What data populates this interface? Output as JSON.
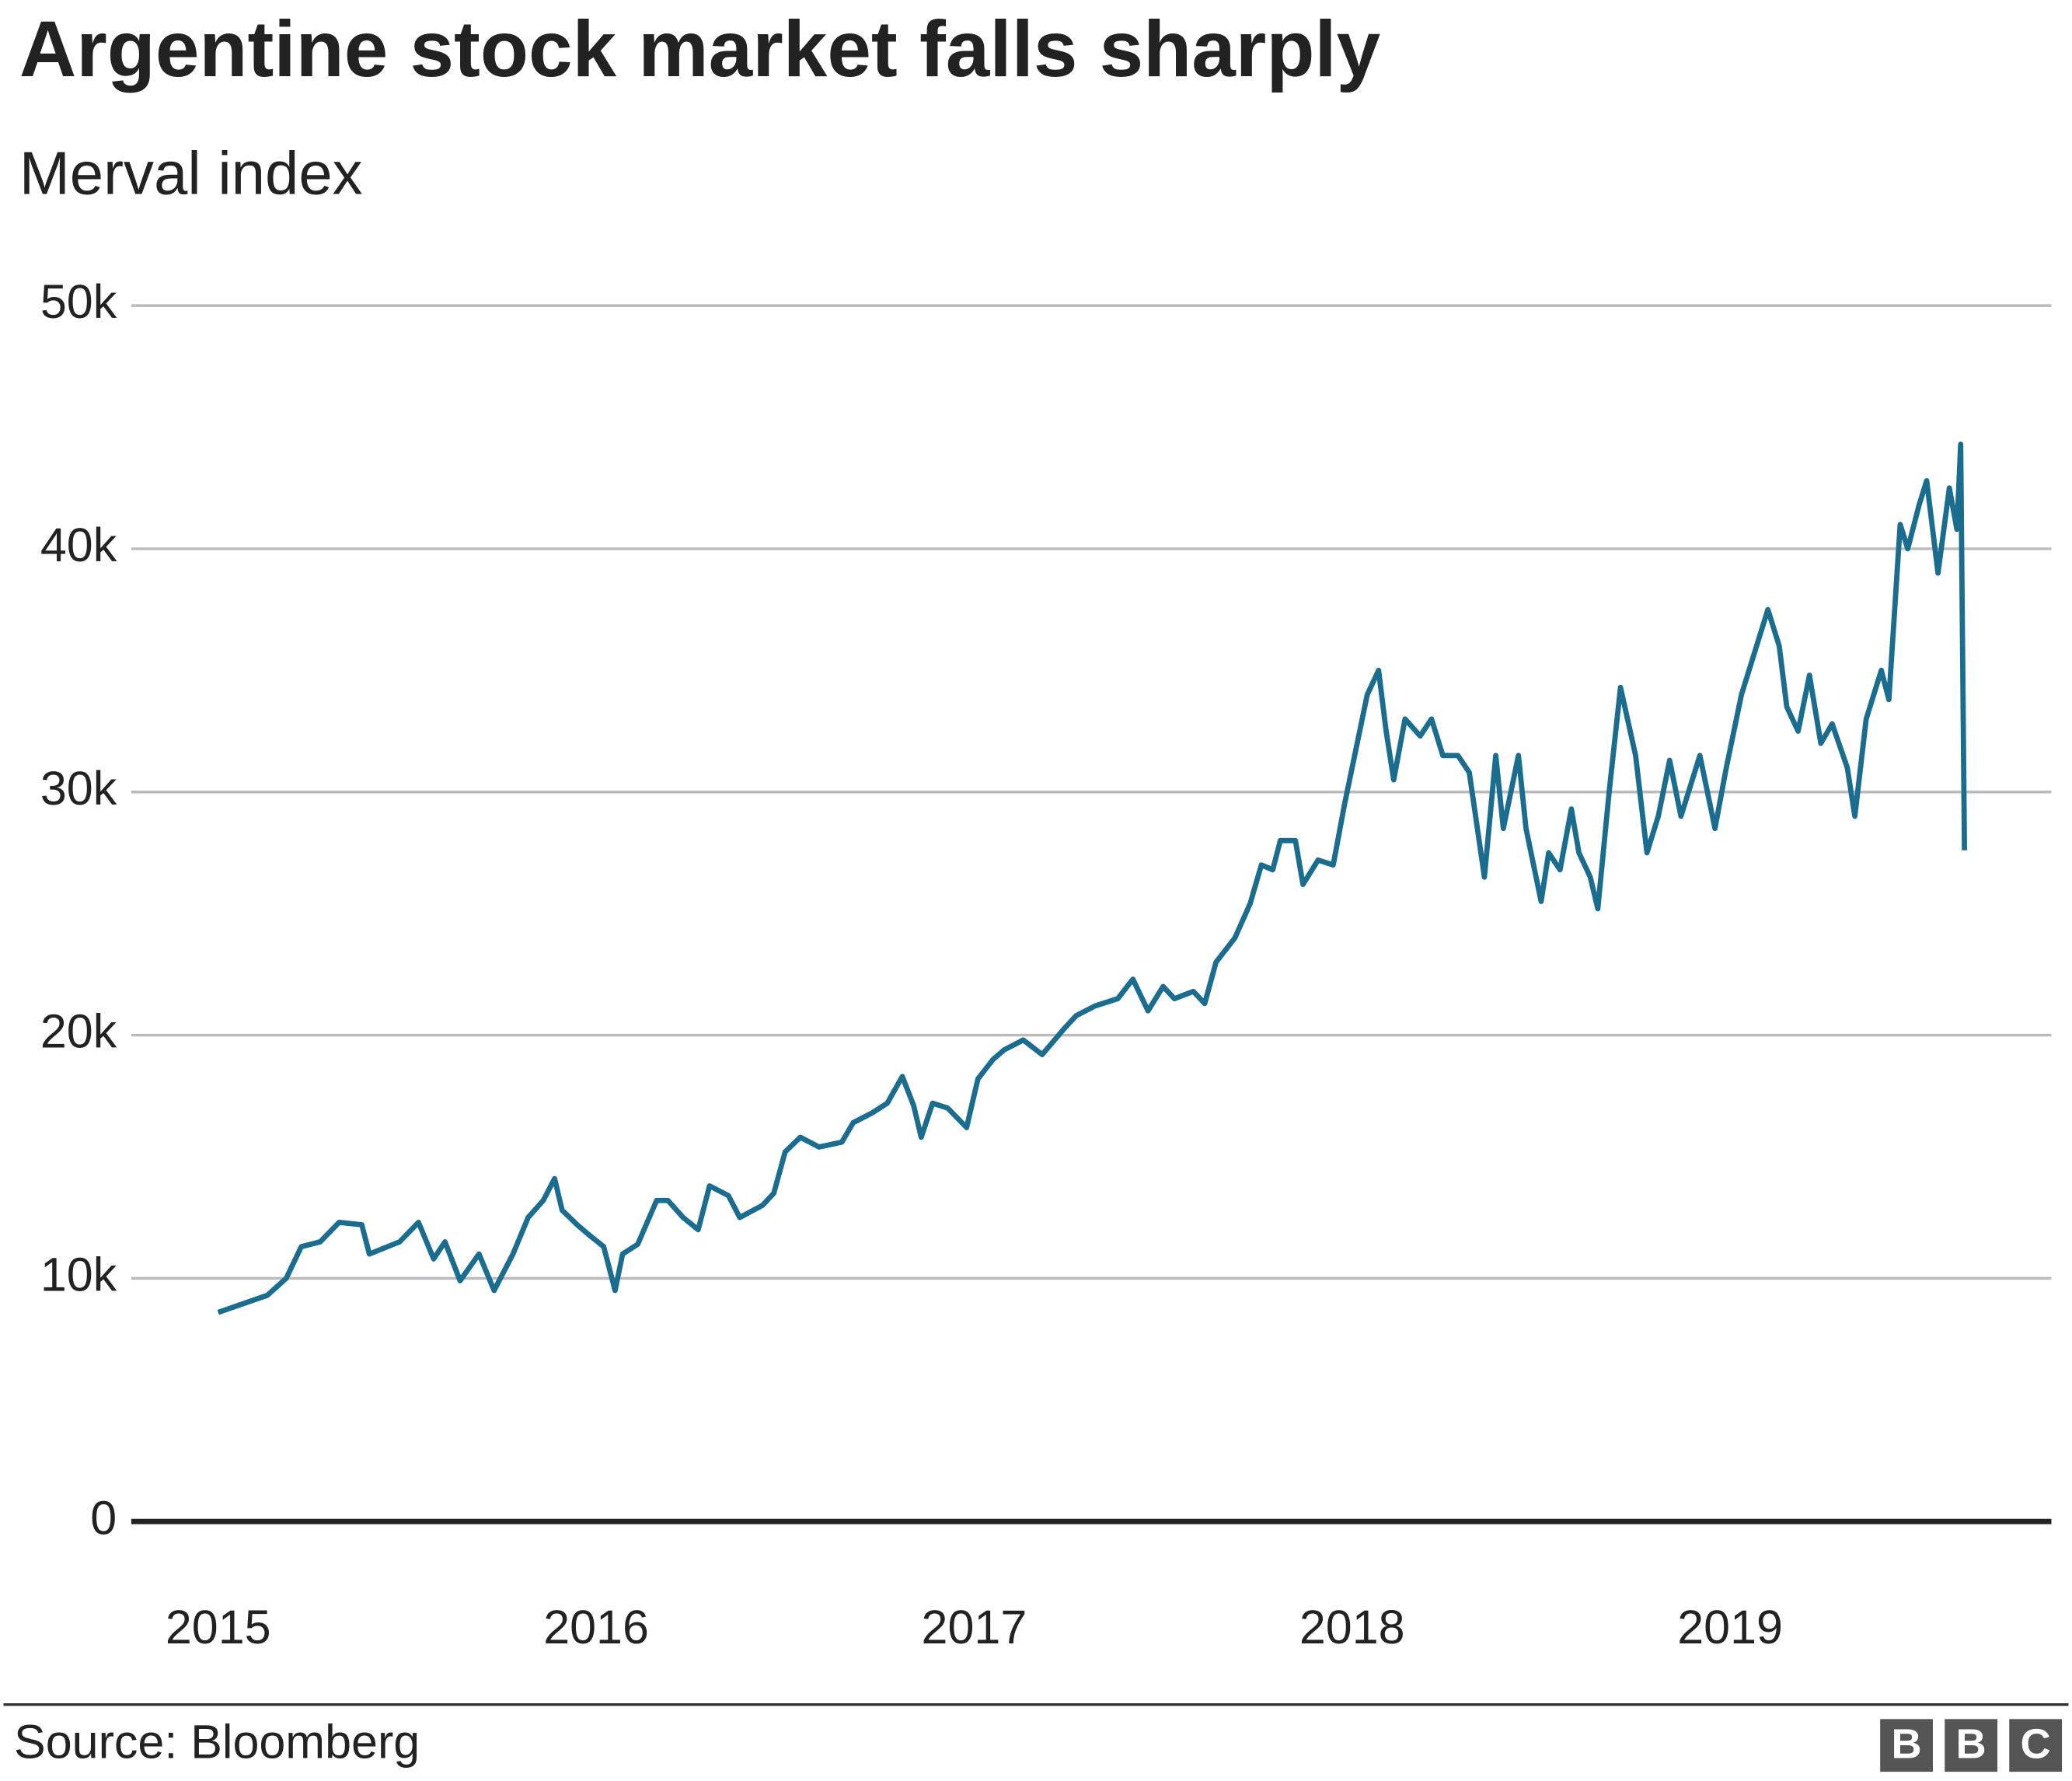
{
  "chart_data": {
    "type": "line",
    "title": "Argentine stock market falls sharply",
    "subtitle": "Merval index",
    "source": "Source: Bloomberg",
    "logo": [
      "B",
      "B",
      "C"
    ],
    "color": "#1b6d8f",
    "x": [
      2015.0,
      2015.13,
      2015.18,
      2015.22,
      2015.27,
      2015.32,
      2015.38,
      2015.4,
      2015.48,
      2015.53,
      2015.57,
      2015.6,
      2015.64,
      2015.69,
      2015.73,
      2015.78,
      2015.82,
      2015.86,
      2015.89,
      2015.91,
      2015.95,
      2015.98,
      2016.02,
      2016.05,
      2016.07,
      2016.11,
      2016.16,
      2016.19,
      2016.23,
      2016.27,
      2016.3,
      2016.35,
      2016.38,
      2016.44,
      2016.47,
      2016.5,
      2016.54,
      2016.59,
      2016.65,
      2016.68,
      2016.73,
      2016.77,
      2016.81,
      2016.84,
      2016.86,
      2016.89,
      2016.93,
      2016.98,
      2017.01,
      2017.05,
      2017.08,
      2017.13,
      2017.18,
      2017.24,
      2017.27,
      2017.32,
      2017.38,
      2017.42,
      2017.46,
      2017.5,
      2017.53,
      2017.58,
      2017.61,
      2017.64,
      2017.69,
      2017.73,
      2017.76,
      2017.79,
      2017.81,
      2017.85,
      2017.87,
      2017.91,
      2017.95,
      2017.98,
      2018.02,
      2018.04,
      2018.07,
      2018.09,
      2018.11,
      2018.14,
      2018.18,
      2018.21,
      2018.24,
      2018.28,
      2018.31,
      2018.35,
      2018.38,
      2018.4,
      2018.44,
      2018.46,
      2018.5,
      2018.52,
      2018.55,
      2018.58,
      2018.6,
      2018.63,
      2018.65,
      2018.68,
      2018.71,
      2018.75,
      2018.78,
      2018.81,
      2018.84,
      2018.87,
      2018.92,
      2018.96,
      2018.99,
      2019.03,
      2019.06,
      2019.1,
      2019.13,
      2019.15,
      2019.18,
      2019.21,
      2019.24,
      2019.27,
      2019.31,
      2019.33,
      2019.36,
      2019.4,
      2019.42,
      2019.45,
      2019.47,
      2019.5,
      2019.52,
      2019.55,
      2019.58,
      2019.6,
      2019.61,
      2019.62
    ],
    "values": [
      8600,
      9300,
      10000,
      11300,
      11500,
      12300,
      12200,
      11000,
      11500,
      12300,
      10800,
      11500,
      9900,
      11000,
      9500,
      11000,
      12500,
      13200,
      14100,
      12800,
      12200,
      11800,
      11300,
      9500,
      11000,
      11400,
      13200,
      13200,
      12500,
      12000,
      13800,
      13400,
      12500,
      13000,
      13500,
      15200,
      15800,
      15400,
      15600,
      16400,
      16800,
      17200,
      18300,
      17100,
      15800,
      17200,
      17000,
      16200,
      18200,
      19000,
      19400,
      19800,
      19200,
      20300,
      20800,
      21200,
      21500,
      22300,
      21000,
      22000,
      21500,
      21800,
      21300,
      23000,
      24000,
      25400,
      27000,
      26800,
      28000,
      28000,
      26200,
      27200,
      27000,
      29500,
      32500,
      34000,
      35000,
      32500,
      30500,
      33000,
      32300,
      33000,
      31500,
      31500,
      30800,
      26500,
      31500,
      28500,
      31500,
      28500,
      25500,
      27500,
      26800,
      29300,
      27500,
      26500,
      25200,
      30000,
      34300,
      31500,
      27500,
      29000,
      31300,
      29000,
      31500,
      28500,
      31000,
      34000,
      35500,
      37500,
      36000,
      33500,
      32500,
      34800,
      32000,
      32800,
      31000,
      29000,
      33000,
      35000,
      33800,
      41000,
      40000,
      41800,
      42800,
      39000,
      42500,
      40800,
      44300,
      27600
    ],
    "xlim": [
      2014.77,
      2019.85
    ],
    "xticks": [
      2015,
      2016,
      2017,
      2018,
      2019
    ],
    "ylim": [
      0,
      50000
    ],
    "yticks": [
      0,
      {
        "value": 10000,
        "label": "10k"
      },
      {
        "value": 20000,
        "label": "20k"
      },
      {
        "value": 30000,
        "label": "30k"
      },
      {
        "value": 40000,
        "label": "40k"
      },
      {
        "value": 50000,
        "label": "50k"
      }
    ],
    "grid": true
  }
}
